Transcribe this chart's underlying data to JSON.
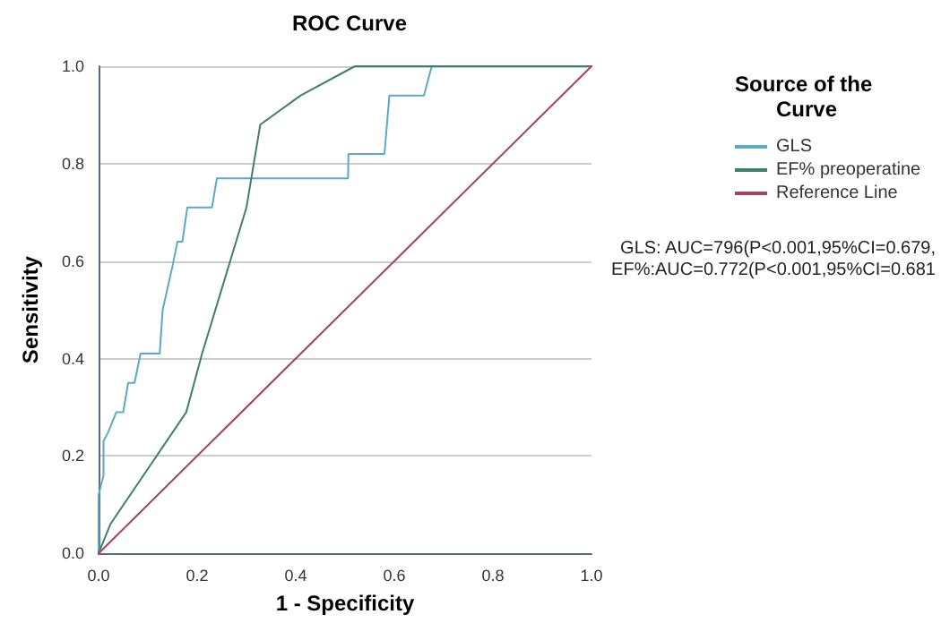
{
  "chart_data": {
    "type": "line",
    "title": "ROC Curve",
    "xlabel": "1 - Specificity",
    "ylabel": "Sensitivity",
    "legend_title": "Source of the Curve",
    "legend": "right",
    "grid": "y",
    "marker": "none",
    "line_style": "solid",
    "xlim": [
      0,
      1
    ],
    "ylim": [
      0,
      1
    ],
    "xticks": [
      {
        "value": 0,
        "label": "0.0"
      },
      {
        "value": 0.2,
        "label": "0.2"
      },
      {
        "value": 0.4,
        "label": "0.4"
      },
      {
        "value": 0.6,
        "label": "0.6"
      },
      {
        "value": 0.8,
        "label": "0.8"
      },
      {
        "value": 1,
        "label": "1.0"
      }
    ],
    "yticks": [
      {
        "value": 0,
        "label": "0.0"
      },
      {
        "value": 0.2,
        "label": "0.2"
      },
      {
        "value": 0.4,
        "label": "0.4"
      },
      {
        "value": 0.6,
        "label": "0.6"
      },
      {
        "value": 0.8,
        "label": "0.8"
      },
      {
        "value": 1,
        "label": "1.0"
      }
    ],
    "series": [
      {
        "name": "GLS",
        "color": "#5aa9c9",
        "x": [
          0,
          0,
          0.01,
          0.01,
          0.02,
          0.036,
          0.05,
          0.06,
          0.073,
          0.085,
          0.124,
          0.13,
          0.15,
          0.16,
          0.17,
          0.18,
          0.23,
          0.24,
          0.506,
          0.507,
          0.58,
          0.59,
          0.66,
          0.676,
          1
        ],
        "values": [
          0,
          0.12,
          0.16,
          0.23,
          0.25,
          0.29,
          0.29,
          0.35,
          0.35,
          0.41,
          0.41,
          0.5,
          0.59,
          0.64,
          0.64,
          0.71,
          0.71,
          0.77,
          0.77,
          0.82,
          0.82,
          0.94,
          0.94,
          1,
          1
        ]
      },
      {
        "name": "EF% preoperatine",
        "color": "#3f7f6f",
        "x": [
          0,
          0.024,
          0.178,
          0.21,
          0.3,
          0.328,
          0.41,
          0.52,
          1
        ],
        "values": [
          0,
          0.06,
          0.29,
          0.41,
          0.71,
          0.88,
          0.94,
          1,
          1
        ]
      },
      {
        "name": "Reference Line",
        "color": "#a3445a",
        "x": [
          0,
          1
        ],
        "values": [
          0,
          1
        ]
      }
    ],
    "annotations": [
      "GLS: AUC=796(P<0.001,95%CI=0.679,",
      "EF%:AUC=0.772(P<0.001,95%CI=0.681"
    ]
  }
}
